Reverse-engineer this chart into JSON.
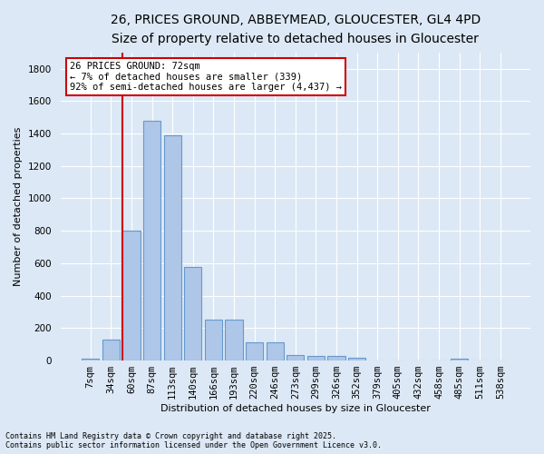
{
  "title1": "26, PRICES GROUND, ABBEYMEAD, GLOUCESTER, GL4 4PD",
  "title2": "Size of property relative to detached houses in Gloucester",
  "xlabel": "Distribution of detached houses by size in Gloucester",
  "ylabel": "Number of detached properties",
  "categories": [
    "7sqm",
    "34sqm",
    "60sqm",
    "87sqm",
    "113sqm",
    "140sqm",
    "166sqm",
    "193sqm",
    "220sqm",
    "246sqm",
    "273sqm",
    "299sqm",
    "326sqm",
    "352sqm",
    "379sqm",
    "405sqm",
    "432sqm",
    "458sqm",
    "485sqm",
    "511sqm",
    "538sqm"
  ],
  "values": [
    10,
    130,
    800,
    1480,
    1390,
    575,
    250,
    250,
    115,
    115,
    35,
    30,
    30,
    15,
    0,
    0,
    0,
    0,
    10,
    0,
    0
  ],
  "bar_color": "#aec6e8",
  "bar_edge_color": "#6699cc",
  "bar_edge_width": 0.8,
  "ylim": [
    0,
    1900
  ],
  "yticks": [
    0,
    200,
    400,
    600,
    800,
    1000,
    1200,
    1400,
    1600,
    1800
  ],
  "vline_color": "#cc0000",
  "vline_x_index": 2,
  "annotation_text": "26 PRICES GROUND: 72sqm\n← 7% of detached houses are smaller (339)\n92% of semi-detached houses are larger (4,437) →",
  "annotation_box_facecolor": "#ffffff",
  "annotation_box_edgecolor": "#cc0000",
  "footnote1": "Contains HM Land Registry data © Crown copyright and database right 2025.",
  "footnote2": "Contains public sector information licensed under the Open Government Licence v3.0.",
  "background_color": "#dce8f5",
  "grid_color": "#ffffff",
  "title1_fontsize": 10,
  "title2_fontsize": 9,
  "axis_label_fontsize": 8,
  "tick_fontsize": 7.5,
  "annotation_fontsize": 7.5,
  "footnote_fontsize": 6
}
